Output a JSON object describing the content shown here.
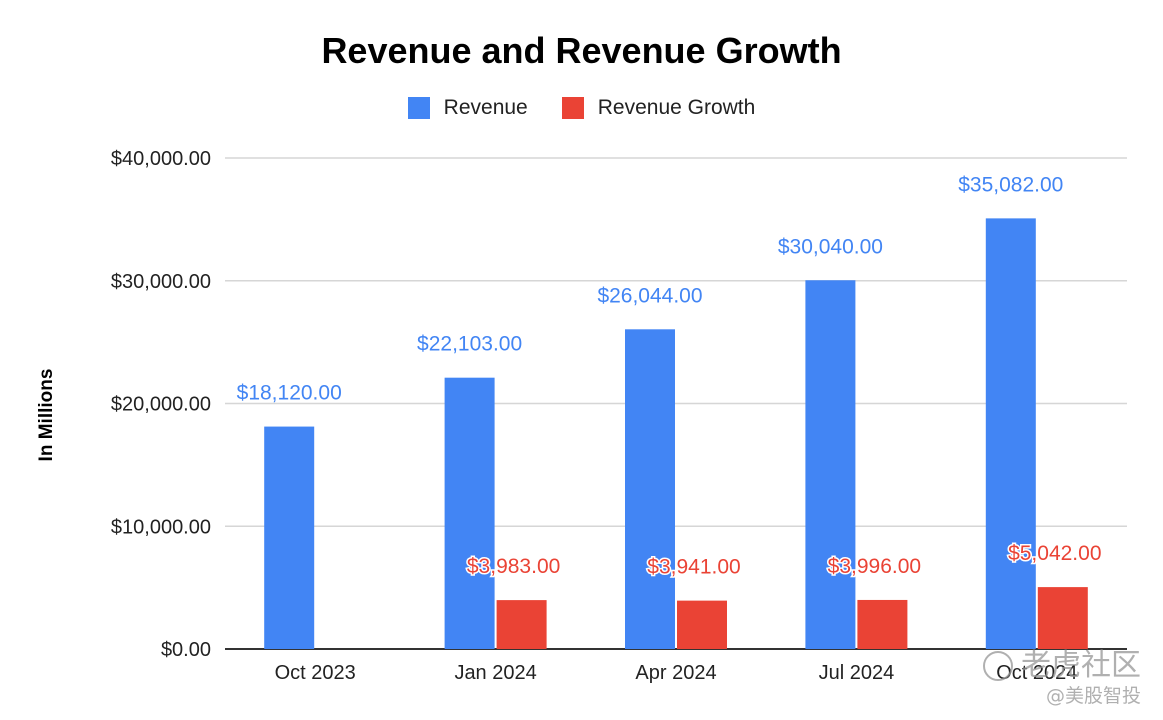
{
  "chart_data": {
    "type": "bar",
    "title": "Revenue and Revenue Growth",
    "ylabel": "In Millions",
    "xlabel": "",
    "categories": [
      "Oct 2023",
      "Jan 2024",
      "Apr 2024",
      "Jul 2024",
      "Oct 2024"
    ],
    "series": [
      {
        "name": "Revenue",
        "color": "#4285f4",
        "values": [
          18120,
          22103,
          26044,
          30040,
          35082
        ],
        "labels": [
          "$18,120.00",
          "$22,103.00",
          "$26,044.00",
          "$30,040.00",
          "$35,082.00"
        ]
      },
      {
        "name": "Revenue Growth",
        "color": "#ea4335",
        "values": [
          null,
          3983,
          3941,
          3996,
          5042
        ],
        "labels": [
          null,
          "$3,983.00",
          "$3,941.00",
          "$3,996.00",
          "$5,042.00"
        ]
      }
    ],
    "ylim": [
      0,
      40000
    ],
    "yticks": [
      0,
      10000,
      20000,
      30000,
      40000
    ],
    "ytick_labels": [
      "$0.00",
      "$10,000.00",
      "$20,000.00",
      "$30,000.00",
      "$40,000.00"
    ],
    "grid": true,
    "legend_position": "top-center"
  },
  "watermark": {
    "line1": "老虎社区",
    "line2": "@美股智投"
  }
}
